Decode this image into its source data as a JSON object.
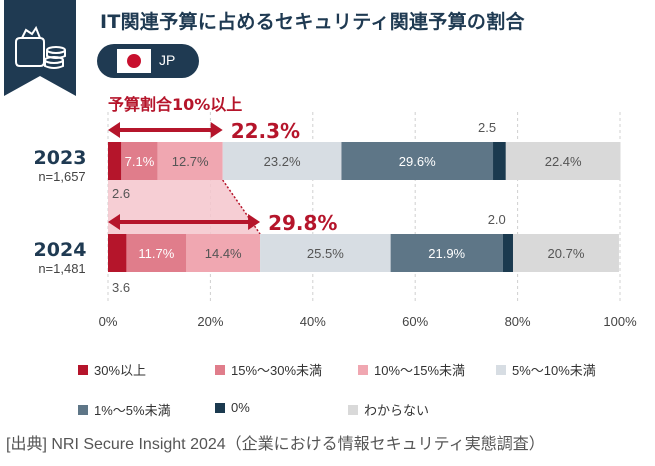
{
  "title": "IT関連予算に占めるセキュリティ関連予算の割合",
  "region": {
    "label": "JP"
  },
  "chart_data": {
    "type": "bar",
    "orientation": "horizontal",
    "stacked": true,
    "categories": [
      "30%以上",
      "15%～30%未満",
      "10%～15%未満",
      "5%～10%未満",
      "1%～5%未満",
      "0%",
      "わからない"
    ],
    "colors": [
      "#b5152b",
      "#e07d8b",
      "#f0a7b1",
      "#d7dde3",
      "#5e7687",
      "#1b3a4f",
      "#d9d9d9"
    ],
    "rows": [
      {
        "year": "2023",
        "n": "n=1,657",
        "values": [
          2.6,
          7.1,
          12.7,
          23.2,
          29.6,
          2.5,
          22.4
        ],
        "labels": [
          "",
          "7.1%",
          "12.7%",
          "23.2%",
          "29.6%",
          "",
          "22.4%"
        ],
        "outside_low": "2.6",
        "outside_high": "2.5",
        "total_10plus": "22.3%"
      },
      {
        "year": "2024",
        "n": "n=1,481",
        "values": [
          3.6,
          11.7,
          14.4,
          25.5,
          21.9,
          2.0,
          20.7
        ],
        "labels": [
          "",
          "11.7%",
          "14.4%",
          "25.5%",
          "21.9%",
          "",
          "20.7%"
        ],
        "outside_low": "3.6",
        "outside_high": "2.0",
        "total_10plus": "29.8%"
      }
    ],
    "bracket_label": "予算割合10%以上",
    "x_ticks": [
      "0%",
      "20%",
      "40%",
      "60%",
      "80%",
      "100%"
    ],
    "xlim": [
      0,
      100
    ]
  },
  "source": "[出典] NRI Secure Insight 2024（企業における情報セキュリティ実態調査）"
}
